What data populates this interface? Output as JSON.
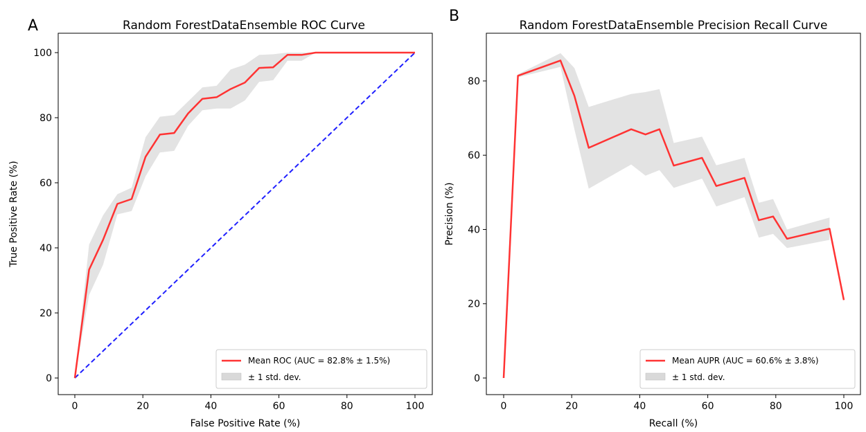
{
  "chart_data": [
    {
      "panel": "A",
      "type": "line",
      "title": "Random ForestDataEnsemble ROC Curve",
      "xlabel": "False Positive Rate (%)",
      "ylabel": "True Positive Rate (%)",
      "xlim": [
        0,
        100
      ],
      "ylim": [
        0,
        100
      ],
      "xticks": [
        0,
        20,
        40,
        60,
        80,
        100
      ],
      "yticks": [
        0,
        20,
        40,
        60,
        80,
        100
      ],
      "grid": false,
      "legend_position": "lower-right",
      "colors": {
        "mean": "#ff3333",
        "band": "#d9d9d9",
        "chance": "#1f1fff"
      },
      "series": [
        {
          "name": "Mean ROC (AUC = 82.8% ± 1.5%)",
          "style": "solid",
          "x": [
            0,
            4.2,
            8.3,
            12.5,
            16.7,
            20.8,
            25,
            29.2,
            33.3,
            37.5,
            41.7,
            45.8,
            50,
            54.2,
            58.3,
            62.5,
            66.7,
            70.8,
            75,
            79.2,
            83.3,
            87.5,
            91.7,
            95.8,
            100
          ],
          "y": [
            0,
            33.3,
            42.5,
            53.5,
            55,
            68,
            74.8,
            75.3,
            81.3,
            85.8,
            86.3,
            88.8,
            90.8,
            95.3,
            95.5,
            99.3,
            99.3,
            100,
            100,
            100,
            100,
            100,
            100,
            100,
            100
          ]
        },
        {
          "name": "± 1 std. dev.",
          "style": "band",
          "x": [
            0,
            4.2,
            8.3,
            12.5,
            16.7,
            20.8,
            25,
            29.2,
            33.3,
            37.5,
            41.7,
            45.8,
            50,
            54.2,
            58.3,
            62.5,
            66.7,
            70.8,
            75,
            79.2,
            83.3,
            87.5,
            91.7,
            95.8,
            100
          ],
          "lower": [
            0,
            25.5,
            34.8,
            50.3,
            51.3,
            62,
            69.3,
            69.8,
            77.5,
            82.3,
            82.8,
            82.8,
            85.3,
            91,
            91.5,
            97.5,
            97.5,
            100,
            100,
            100,
            100,
            100,
            100,
            100,
            100
          ],
          "upper": [
            0,
            41,
            50,
            56.5,
            58.5,
            74,
            80.3,
            80.8,
            85,
            89.3,
            89.8,
            94.8,
            96.3,
            99.3,
            99.5,
            100,
            100,
            100,
            100,
            100,
            100,
            100,
            100,
            100,
            100
          ]
        },
        {
          "style": "dashed",
          "x": [
            0,
            100
          ],
          "y": [
            0,
            100
          ]
        }
      ]
    },
    {
      "panel": "B",
      "type": "line",
      "title": "Random ForestDataEnsemble Precision Recall Curve",
      "xlabel": "Recall (%)",
      "ylabel": "Precision (%)",
      "xlim": [
        0,
        100
      ],
      "ylim": [
        0,
        90
      ],
      "xticks": [
        0,
        20,
        40,
        60,
        80,
        100
      ],
      "yticks": [
        0,
        20,
        40,
        60,
        80
      ],
      "grid": false,
      "legend_position": "lower-right",
      "colors": {
        "mean": "#ff3333",
        "band": "#d9d9d9"
      },
      "series": [
        {
          "name": "Mean AUPR (AUC = 60.6% ± 3.8%)",
          "style": "solid",
          "x": [
            0,
            4.2,
            16.7,
            20.8,
            25,
            37.5,
            41.7,
            45.8,
            50,
            58.3,
            62.5,
            70.8,
            75,
            79.2,
            83.3,
            95.8,
            100
          ],
          "y": [
            0,
            81.4,
            85.5,
            76,
            62,
            67,
            65.6,
            67,
            57.2,
            59.3,
            51.7,
            53.9,
            42.5,
            43.5,
            37.5,
            40.2,
            21
          ]
        },
        {
          "name": "± 1 std. dev.",
          "style": "band",
          "x": [
            4.2,
            16.7,
            20.8,
            25,
            37.5,
            41.7,
            45.8,
            50,
            58.3,
            62.5,
            70.8,
            75,
            79.2,
            83.3,
            95.8
          ],
          "lower": [
            81,
            83.8,
            67,
            51,
            57.5,
            54.5,
            56,
            51.2,
            53.7,
            46.2,
            48.7,
            37.8,
            38.8,
            35,
            37.2
          ],
          "upper": [
            81.8,
            87.5,
            83.5,
            73,
            76.5,
            77,
            77.8,
            63.3,
            65,
            57.3,
            59.3,
            47.2,
            48.2,
            40,
            43.2
          ]
        }
      ]
    }
  ]
}
